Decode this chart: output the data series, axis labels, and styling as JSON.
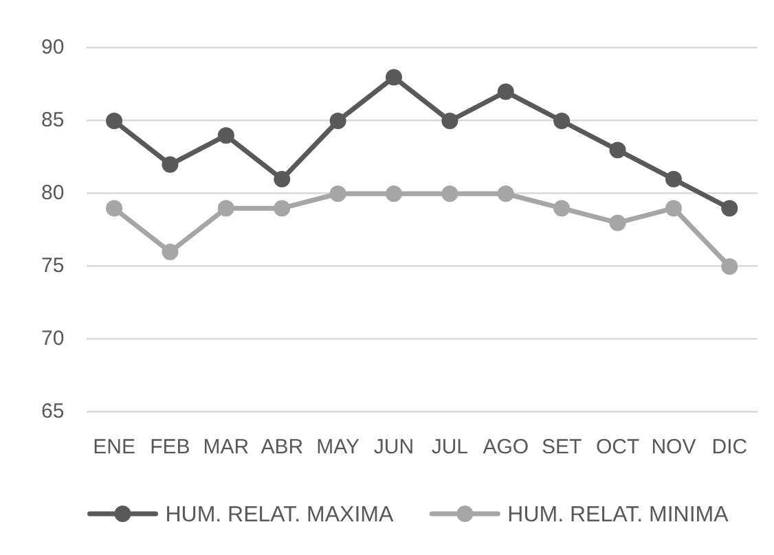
{
  "chart_data": {
    "type": "line",
    "categories": [
      "ENE",
      "FEB",
      "MAR",
      "ABR",
      "MAY",
      "JUN",
      "JUL",
      "AGO",
      "SET",
      "OCT",
      "NOV",
      "DIC"
    ],
    "series": [
      {
        "name": "HUM. RELAT. MAXIMA",
        "color": "#595959",
        "values": [
          85,
          82,
          84,
          81,
          85,
          88,
          85,
          87,
          85,
          83,
          81,
          79
        ]
      },
      {
        "name": "HUM. RELAT. MINIMA",
        "color": "#a6a6a6",
        "values": [
          79,
          76,
          79,
          79,
          80,
          80,
          80,
          80,
          79,
          78,
          79,
          75
        ]
      }
    ],
    "ylim": [
      65,
      90
    ],
    "yticks": [
      65,
      70,
      75,
      80,
      85,
      90
    ],
    "grid": "y",
    "legend": "bottom",
    "marker": "circle",
    "line_style": "solid"
  }
}
